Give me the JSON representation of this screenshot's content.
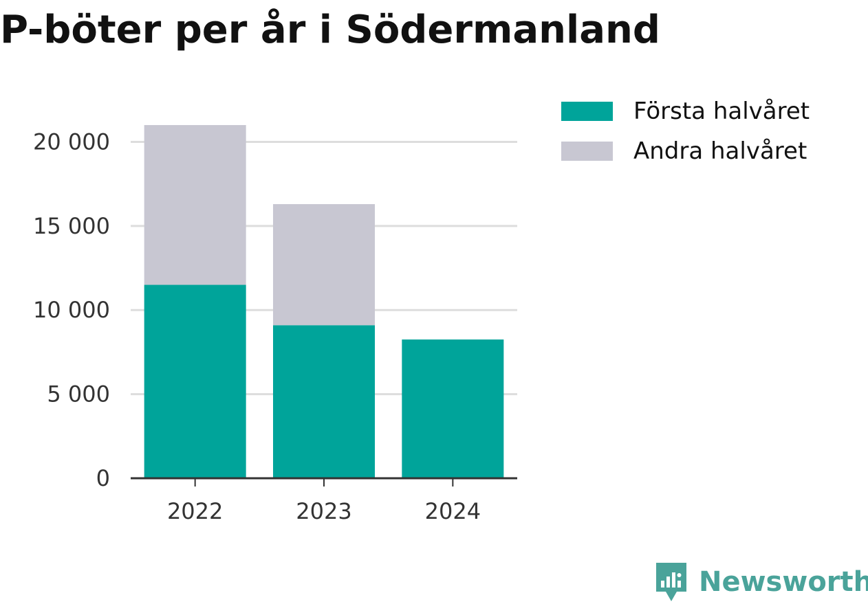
{
  "title": "P-böter per år i Södermanland",
  "brand": {
    "name": "Newsworthy",
    "icon": "newsworthy-logo-icon"
  },
  "colors": {
    "first_half": "#00a49a",
    "second_half": "#c8c7d2",
    "grid": "#dddddd",
    "axis": "#333333"
  },
  "chart_data": {
    "type": "bar",
    "stacked": true,
    "categories": [
      "2022",
      "2023",
      "2024"
    ],
    "series": [
      {
        "name": "Första halvåret",
        "values": [
          11500,
          9100,
          8250
        ]
      },
      {
        "name": "Andra halvåret",
        "values": [
          9500,
          7200,
          0
        ]
      }
    ],
    "ylim": [
      0,
      21000
    ],
    "yticks": [
      0,
      5000,
      10000,
      15000,
      20000
    ],
    "ytick_labels": [
      "0",
      "5 000",
      "10 000",
      "15 000",
      "20 000"
    ],
    "grid": true,
    "legend": "top-right",
    "title": "P-böter per år i Södermanland",
    "xlabel": "",
    "ylabel": ""
  }
}
